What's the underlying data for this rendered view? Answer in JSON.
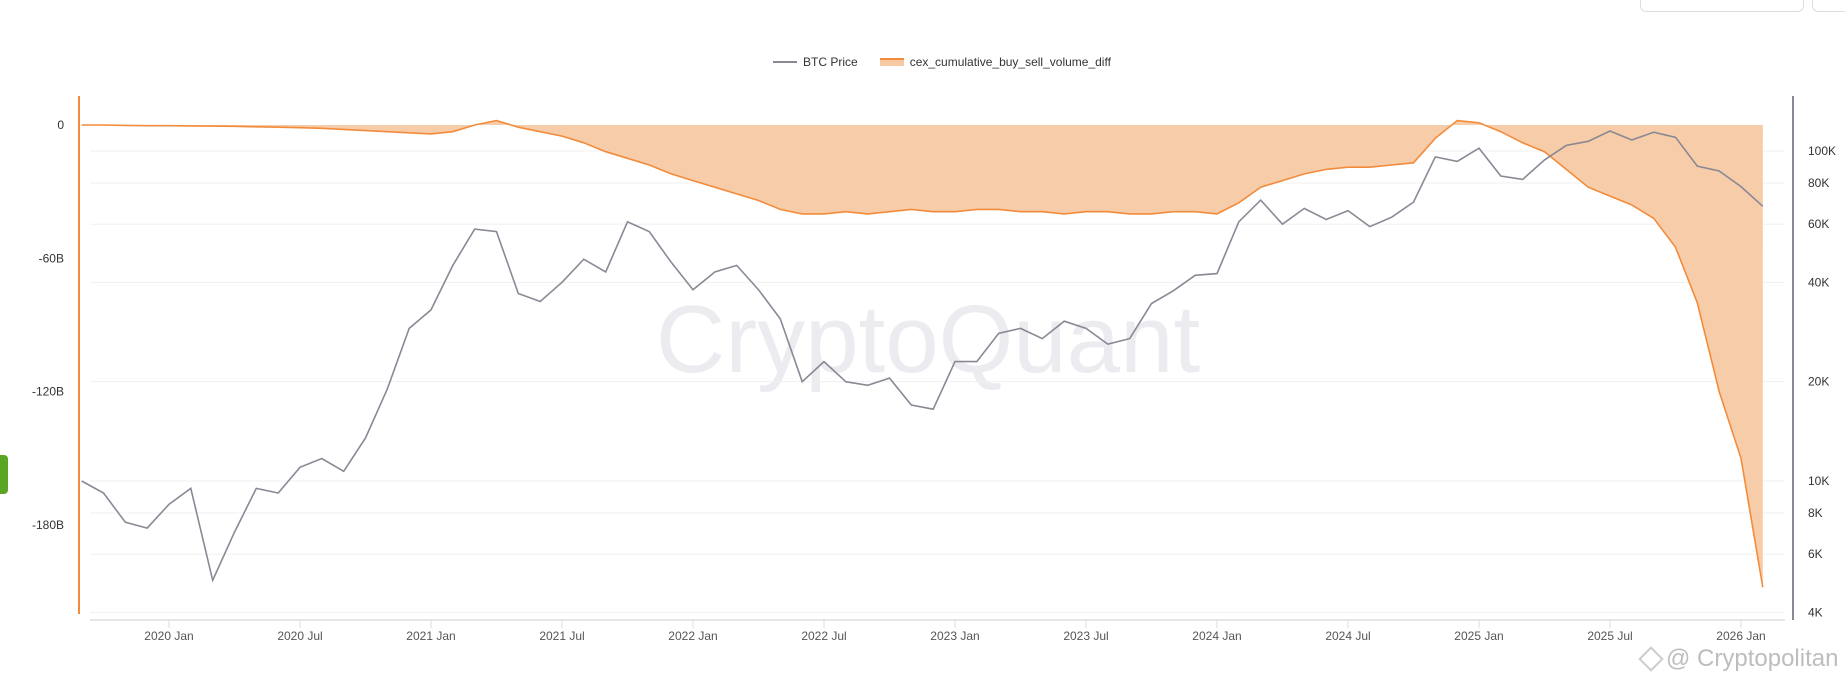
{
  "watermark": "CryptoQuant",
  "source_watermark": "@ Cryptopolitan",
  "chart_data": {
    "type": "line",
    "title": "",
    "legend_position": "top-center",
    "grid": true,
    "x_ticks": [
      "2020 Jan",
      "2020 Jul",
      "2021 Jan",
      "2021 Jul",
      "2022 Jan",
      "2022 Jul",
      "2023 Jan",
      "2023 Jul",
      "2024 Jan",
      "2024 Jul",
      "2025 Jan",
      "2025 Jul",
      "2026 Jan"
    ],
    "x": [
      "2019-09",
      "2019-10",
      "2019-11",
      "2019-12",
      "2020-01",
      "2020-02",
      "2020-03",
      "2020-04",
      "2020-05",
      "2020-06",
      "2020-07",
      "2020-08",
      "2020-09",
      "2020-10",
      "2020-11",
      "2020-12",
      "2021-01",
      "2021-02",
      "2021-03",
      "2021-04",
      "2021-05",
      "2021-06",
      "2021-07",
      "2021-08",
      "2021-09",
      "2021-10",
      "2021-11",
      "2021-12",
      "2022-01",
      "2022-02",
      "2022-03",
      "2022-04",
      "2022-05",
      "2022-06",
      "2022-07",
      "2022-08",
      "2022-09",
      "2022-10",
      "2022-11",
      "2022-12",
      "2023-01",
      "2023-02",
      "2023-03",
      "2023-04",
      "2023-05",
      "2023-06",
      "2023-07",
      "2023-08",
      "2023-09",
      "2023-10",
      "2023-11",
      "2023-12",
      "2024-01",
      "2024-02",
      "2024-03",
      "2024-04",
      "2024-05",
      "2024-06",
      "2024-07",
      "2024-08",
      "2024-09",
      "2024-10",
      "2024-11",
      "2024-12",
      "2025-01",
      "2025-02",
      "2025-03",
      "2025-04",
      "2025-05",
      "2025-06",
      "2025-07",
      "2025-08",
      "2025-09",
      "2025-10",
      "2025-11",
      "2025-12",
      "2026-01",
      "2026-02"
    ],
    "left_axis": {
      "ticks": [
        "0",
        "-60B",
        "-120B",
        "-180B"
      ],
      "tick_values": [
        0,
        -60,
        -120,
        -180
      ],
      "unit": "B",
      "color": "#f28c3c"
    },
    "right_axis": {
      "scale": "log",
      "ticks": [
        "100K",
        "80K",
        "60K",
        "40K",
        "20K",
        "10K",
        "8K",
        "6K",
        "4K"
      ],
      "tick_values": [
        100000,
        80000,
        60000,
        40000,
        20000,
        10000,
        8000,
        6000,
        4000
      ],
      "color": "#8a8895"
    },
    "series": [
      {
        "name": "BTC Price",
        "axis": "right",
        "color": "#8a8895",
        "values": [
          10000,
          9200,
          7500,
          7200,
          8500,
          9500,
          5000,
          7000,
          9500,
          9200,
          11000,
          11700,
          10700,
          13500,
          19000,
          29000,
          33000,
          45000,
          58000,
          57000,
          37000,
          35000,
          40000,
          47000,
          43000,
          61000,
          57000,
          46000,
          38000,
          43000,
          45000,
          38000,
          31000,
          20000,
          23000,
          20000,
          19500,
          20500,
          17000,
          16500,
          23000,
          23000,
          28000,
          29000,
          27000,
          30500,
          29000,
          26000,
          27000,
          34500,
          37700,
          42000,
          42500,
          61000,
          71000,
          60000,
          67000,
          62000,
          66000,
          59000,
          63000,
          70000,
          96000,
          93000,
          102000,
          84000,
          82000,
          94000,
          104000,
          107000,
          115000,
          108000,
          114000,
          110000,
          90000,
          87000,
          78000,
          68000
        ]
      },
      {
        "name": "cex_cumulative_buy_sell_volume_diff",
        "axis": "left",
        "color": "#f28c3c",
        "fill": "#f7c9a3",
        "values": [
          0,
          0,
          -0.2,
          -0.3,
          -0.3,
          -0.4,
          -0.5,
          -0.6,
          -0.8,
          -1,
          -1.2,
          -1.5,
          -2,
          -2.5,
          -3,
          -3.5,
          -4,
          -3,
          0,
          2,
          -1,
          -3,
          -5,
          -8,
          -12,
          -15,
          -18,
          -22,
          -25,
          -28,
          -31,
          -34,
          -38,
          -40,
          -40,
          -39,
          -40,
          -39,
          -38,
          -39,
          -39,
          -38,
          -38,
          -39,
          -39,
          -40,
          -39,
          -39,
          -40,
          -40,
          -39,
          -39,
          -40,
          -35,
          -28,
          -25,
          -22,
          -20,
          -19,
          -19,
          -18,
          -17,
          -6,
          2,
          1,
          -3,
          -8,
          -12,
          -20,
          -28,
          -32,
          -36,
          -42,
          -55,
          -80,
          -120,
          -150,
          -208
        ]
      }
    ]
  }
}
